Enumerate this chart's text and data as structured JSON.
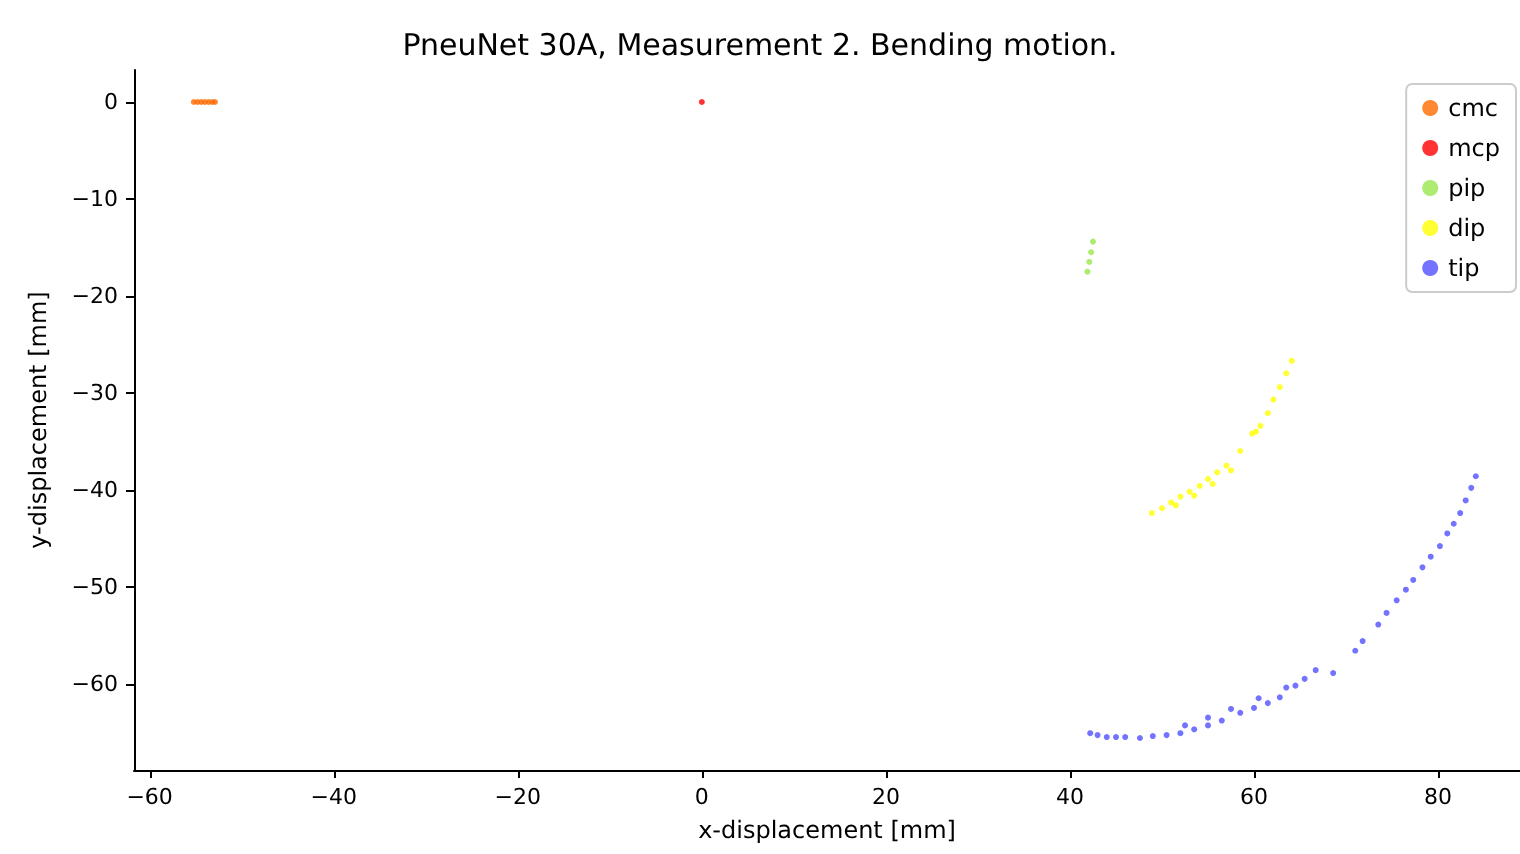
{
  "chart_data": {
    "type": "scatter",
    "title": "PneuNet 30A, Measurement 2. Bending motion.",
    "xlabel": "x-displacement [mm]",
    "ylabel": "y-displacement [mm]",
    "xlim": [
      -61.7,
      88.9
    ],
    "xticks": [
      -60,
      -40,
      -20,
      0,
      20,
      40,
      60,
      80
    ],
    "ylim": [
      -68.9,
      3.3
    ],
    "yticks": [
      -60,
      -50,
      -40,
      -30,
      -20,
      -10,
      0
    ],
    "grid": false,
    "legend": "top right",
    "marker": "circle",
    "series": [
      {
        "name": "cmc",
        "color": "#ff6a00",
        "x": [
          -55.2,
          -54.8,
          -54.4,
          -54,
          -53.6,
          -53.2,
          -52.9
        ],
        "values": [
          0,
          0,
          0,
          0,
          0,
          0,
          0
        ]
      },
      {
        "name": "mcp",
        "color": "#ff0000",
        "x": [
          0
        ],
        "values": [
          0
        ]
      },
      {
        "name": "pip",
        "color": "#99e64d",
        "x": [
          42.5,
          42.3,
          42.1,
          41.9
        ],
        "values": [
          -14.4,
          -15.5,
          -16.5,
          -17.5
        ]
      },
      {
        "name": "dip",
        "color": "#ffff00",
        "x": [
          48.9,
          50,
          51,
          52,
          53,
          54.1,
          55,
          56,
          57,
          58.5,
          59.8,
          60.7,
          61.5,
          62.1,
          62.8,
          63.5,
          64.1,
          51.5,
          53.5,
          55.5,
          57.5,
          60.2
        ],
        "values": [
          -42.4,
          -41.9,
          -41.3,
          -40.7,
          -40.2,
          -39.6,
          -38.9,
          -38.2,
          -37.5,
          -36,
          -34.2,
          -33.4,
          -32.1,
          -30.7,
          -29.4,
          -28,
          -26.7,
          -41.6,
          -40.6,
          -39.4,
          -38,
          -34
        ]
      },
      {
        "name": "tip",
        "color": "#5050ff",
        "x": [
          42.2,
          43,
          44,
          45,
          46,
          47.6,
          49,
          50.5,
          52,
          53.5,
          55,
          56.5,
          58.5,
          60,
          61.5,
          62.8,
          64.5,
          66.7,
          68.6,
          71,
          71.8,
          73.5,
          74.4,
          75.5,
          76.5,
          77.3,
          78.3,
          79.2,
          80.2,
          81,
          81.7,
          82.4,
          83,
          83.6,
          84.1,
          52.5,
          55,
          57.5,
          60.5,
          63.5,
          65.5
        ],
        "values": [
          -65.1,
          -65.3,
          -65.5,
          -65.5,
          -65.5,
          -65.6,
          -65.4,
          -65.3,
          -65.1,
          -64.7,
          -64.3,
          -63.8,
          -63,
          -62.5,
          -62,
          -61.4,
          -60.2,
          -58.6,
          -58.9,
          -56.6,
          -55.6,
          -53.9,
          -52.7,
          -51.4,
          -50.3,
          -49.3,
          -48,
          -46.9,
          -45.8,
          -44.5,
          -43.5,
          -42.4,
          -41.1,
          -39.8,
          -38.6,
          -64.3,
          -63.5,
          -62.6,
          -61.5,
          -60.4,
          -59.5
        ]
      }
    ]
  }
}
